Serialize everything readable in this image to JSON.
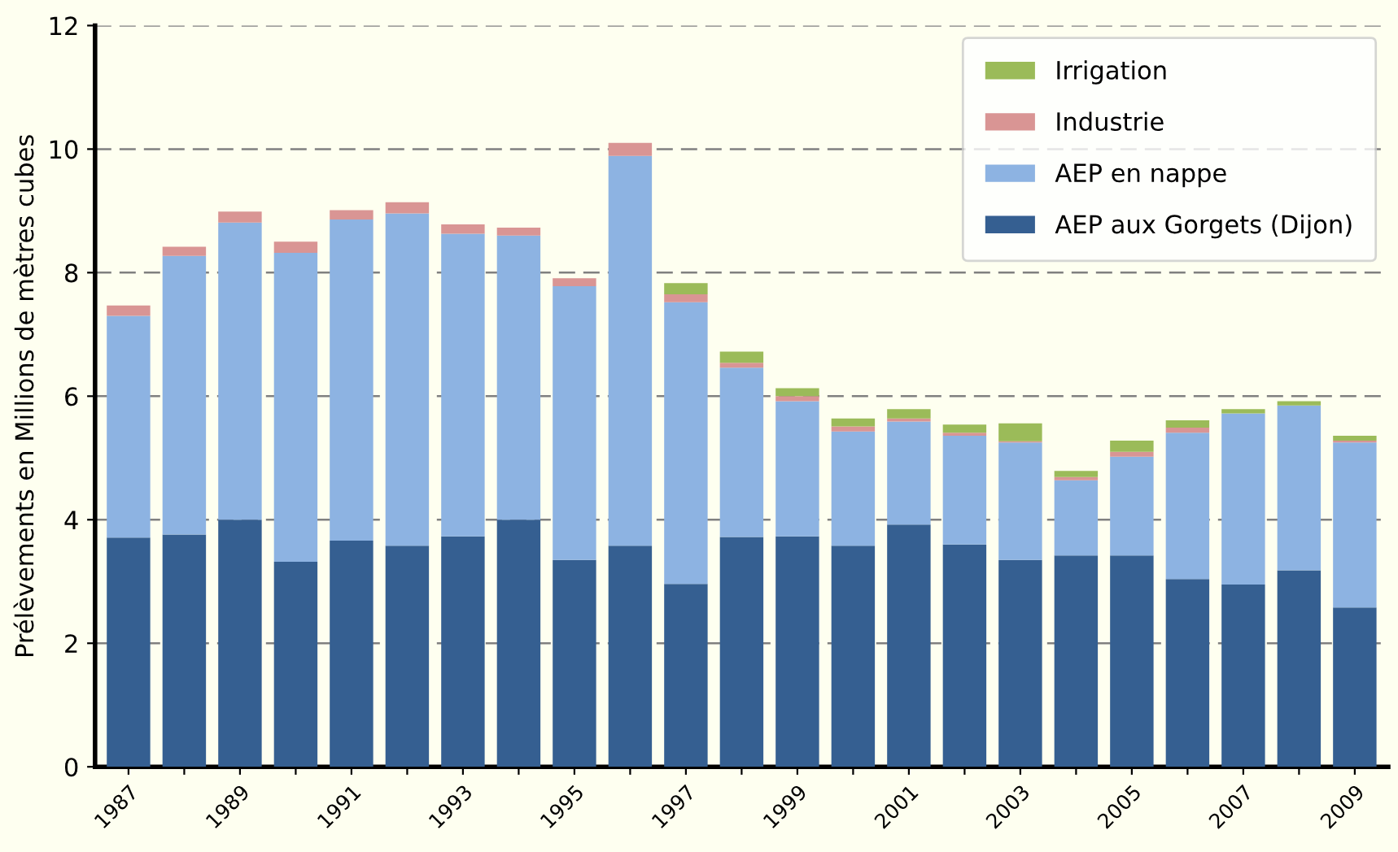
{
  "chart_data": {
    "type": "bar",
    "stacked": true,
    "ylabel": "Prélèvements en Millions de mètres cubes",
    "categories": [
      "1987",
      null,
      "1989",
      null,
      "1991",
      null,
      "1993",
      null,
      "1995",
      null,
      "1997",
      null,
      "1999",
      null,
      "2001",
      null,
      "2003",
      null,
      "2005",
      null,
      "2007",
      null,
      "2009"
    ],
    "series": [
      {
        "name": "AEP aux Gorgets (Dijon)",
        "color": "#355f91",
        "values": [
          3.71,
          3.76,
          4.0,
          3.32,
          3.66,
          3.58,
          3.73,
          4.0,
          3.35,
          3.58,
          2.96,
          3.72,
          3.73,
          3.58,
          3.92,
          3.6,
          3.35,
          3.42,
          3.42,
          3.04,
          2.95,
          3.18,
          2.58
        ]
      },
      {
        "name": "AEP en nappe",
        "color": "#8db3e2",
        "values": [
          3.59,
          4.51,
          4.81,
          5.0,
          5.2,
          5.38,
          4.9,
          4.6,
          4.43,
          6.31,
          4.56,
          2.74,
          2.19,
          1.85,
          1.67,
          1.76,
          1.9,
          1.22,
          1.6,
          2.37,
          2.77,
          2.67,
          2.67
        ]
      },
      {
        "name": "Industrie",
        "color": "#d99594",
        "values": [
          0.17,
          0.15,
          0.18,
          0.18,
          0.15,
          0.18,
          0.15,
          0.13,
          0.13,
          0.21,
          0.13,
          0.08,
          0.08,
          0.08,
          0.05,
          0.05,
          0.02,
          0.05,
          0.08,
          0.08,
          0,
          0,
          0.03
        ]
      },
      {
        "name": "Irrigation",
        "color": "#9bbb59",
        "values": [
          0,
          0,
          0,
          0,
          0,
          0,
          0,
          0,
          0,
          0,
          0.18,
          0.18,
          0.13,
          0.13,
          0.15,
          0.13,
          0.29,
          0.1,
          0.18,
          0.12,
          0.07,
          0.07,
          0.08
        ]
      }
    ],
    "ylim": [
      0,
      12
    ],
    "yticks": [
      0,
      2,
      4,
      6,
      8,
      10,
      12
    ],
    "grid": "y",
    "legend": "top right"
  }
}
